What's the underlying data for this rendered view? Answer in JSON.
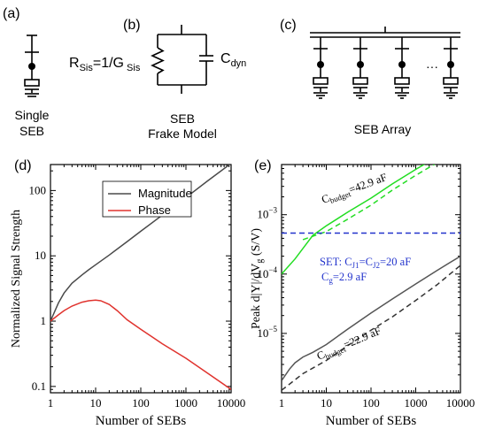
{
  "panels": {
    "a": {
      "label": "(a)",
      "caption_line1": "Single",
      "caption_line2": "SEB"
    },
    "b": {
      "label": "(b)",
      "r_label": "R",
      "r_sub": "Sis",
      "r_eq": "=1/G",
      "g_sub": " Sis",
      "c_label": "C",
      "c_sub": "dyn",
      "caption_line1": "SEB",
      "caption_line2": "Frake Model"
    },
    "c": {
      "label": "(c)",
      "ellipsis": "···",
      "caption": "SEB Array"
    },
    "d": {
      "label": "(d)"
    },
    "e": {
      "label": "(e)",
      "upper_annot": "C",
      "upper_annot_sub": "budget",
      "upper_annot_val": "=42.9 aF",
      "lower_annot": "C",
      "lower_annot_sub": "budget",
      "lower_annot_val": "=22.9 aF",
      "set_line1": "SET: C",
      "set_j1": "J1",
      "set_eq": "=C",
      "set_j2": "J2",
      "set_val": "=20 aF",
      "set_line2": "C",
      "set_g": "g",
      "set_val2": "=2.9 aF"
    }
  },
  "colors": {
    "magnitude": "#4a4a4a",
    "phase": "#e0332e",
    "green": "#22dd22",
    "gray": "#555555",
    "blue": "#2233cc"
  },
  "chart_data": [
    {
      "panel": "d",
      "type": "line",
      "xlabel": "Number of SEBs",
      "ylabel": "Normalized Signal Strength",
      "xscale": "log",
      "yscale": "log",
      "xlim": [
        1,
        10000
      ],
      "ylim": [
        0.08,
        250
      ],
      "xticks": [
        "1",
        "10",
        "100",
        "1000",
        "10000"
      ],
      "yticks": [
        "0.1",
        "1",
        "10",
        "100"
      ],
      "legend_position": "top-center",
      "series": [
        {
          "name": "Magnitude",
          "color": "#4a4a4a",
          "x": [
            1,
            1.5,
            2,
            3,
            5,
            7,
            10,
            20,
            50,
            100,
            300,
            1000,
            3000,
            10000
          ],
          "y": [
            1,
            1.9,
            2.7,
            3.8,
            5.1,
            6.1,
            7.3,
            10.3,
            16.5,
            23.8,
            42,
            78,
            140,
            260
          ]
        },
        {
          "name": "Phase",
          "color": "#e0332e",
          "x": [
            1,
            1.5,
            2,
            3,
            5,
            7,
            10,
            13,
            20,
            30,
            50,
            100,
            300,
            1000,
            3000,
            10000
          ],
          "y": [
            1,
            1.25,
            1.45,
            1.7,
            1.95,
            2.05,
            2.1,
            2.05,
            1.8,
            1.45,
            1.05,
            0.75,
            0.45,
            0.27,
            0.16,
            0.09
          ]
        }
      ]
    },
    {
      "panel": "e",
      "type": "line",
      "xlabel": "Number of SEBs",
      "ylabel": "Peak d|Y|/dV_g (S/V)",
      "xscale": "log",
      "yscale": "log",
      "xlim": [
        1,
        10000
      ],
      "ylim": [
        1e-06,
        0.007
      ],
      "xticks": [
        "1",
        "10",
        "100",
        "1000",
        "10000"
      ],
      "yticks": [
        "10^-5",
        "10^-4",
        "10^-3"
      ],
      "grid": false,
      "series": [
        {
          "name": "",
          "color": "#22dd22",
          "dash": "solid",
          "x": [
            1,
            2,
            5,
            10,
            30,
            100,
            300,
            1000,
            2000
          ],
          "y": [
            0.0001,
            0.00018,
            0.00045,
            0.00065,
            0.0011,
            0.0019,
            0.0033,
            0.0058,
            0.0079
          ]
        },
        {
          "name": "",
          "color": "#22dd22",
          "dash": "dashed",
          "x": [
            3,
            10,
            30,
            100,
            300,
            1000,
            3000
          ],
          "y": [
            0.00038,
            0.00052,
            0.00084,
            0.00145,
            0.0026,
            0.0046,
            0.0075
          ]
        },
        {
          "name": "",
          "color": "#2233cc",
          "dash": "dashed",
          "x": [
            1,
            10000
          ],
          "y": [
            0.00049,
            0.00049
          ]
        },
        {
          "name": "",
          "color": "#555555",
          "dash": "solid",
          "x": [
            1,
            1.5,
            2,
            3,
            5,
            10,
            30,
            100,
            300,
            1000,
            3000,
            10000
          ],
          "y": [
            1.6e-06,
            2.5e-06,
            3.2e-06,
            4e-06,
            4.8e-06,
            6.5e-06,
            1.18e-05,
            2.2e-05,
            3.8e-05,
            6.8e-05,
            0.000115,
            0.0002
          ]
        },
        {
          "name": "",
          "color": "#333333",
          "dash": "dashed",
          "x": [
            1,
            3,
            10,
            30,
            100,
            300,
            1000,
            3000,
            10000
          ],
          "y": [
            1.1e-06,
            2.1e-06,
            3.5e-06,
            6.2e-06,
            1.13e-05,
            1.9e-05,
            3.6e-05,
            6.6e-05,
            0.00014
          ]
        }
      ]
    }
  ]
}
